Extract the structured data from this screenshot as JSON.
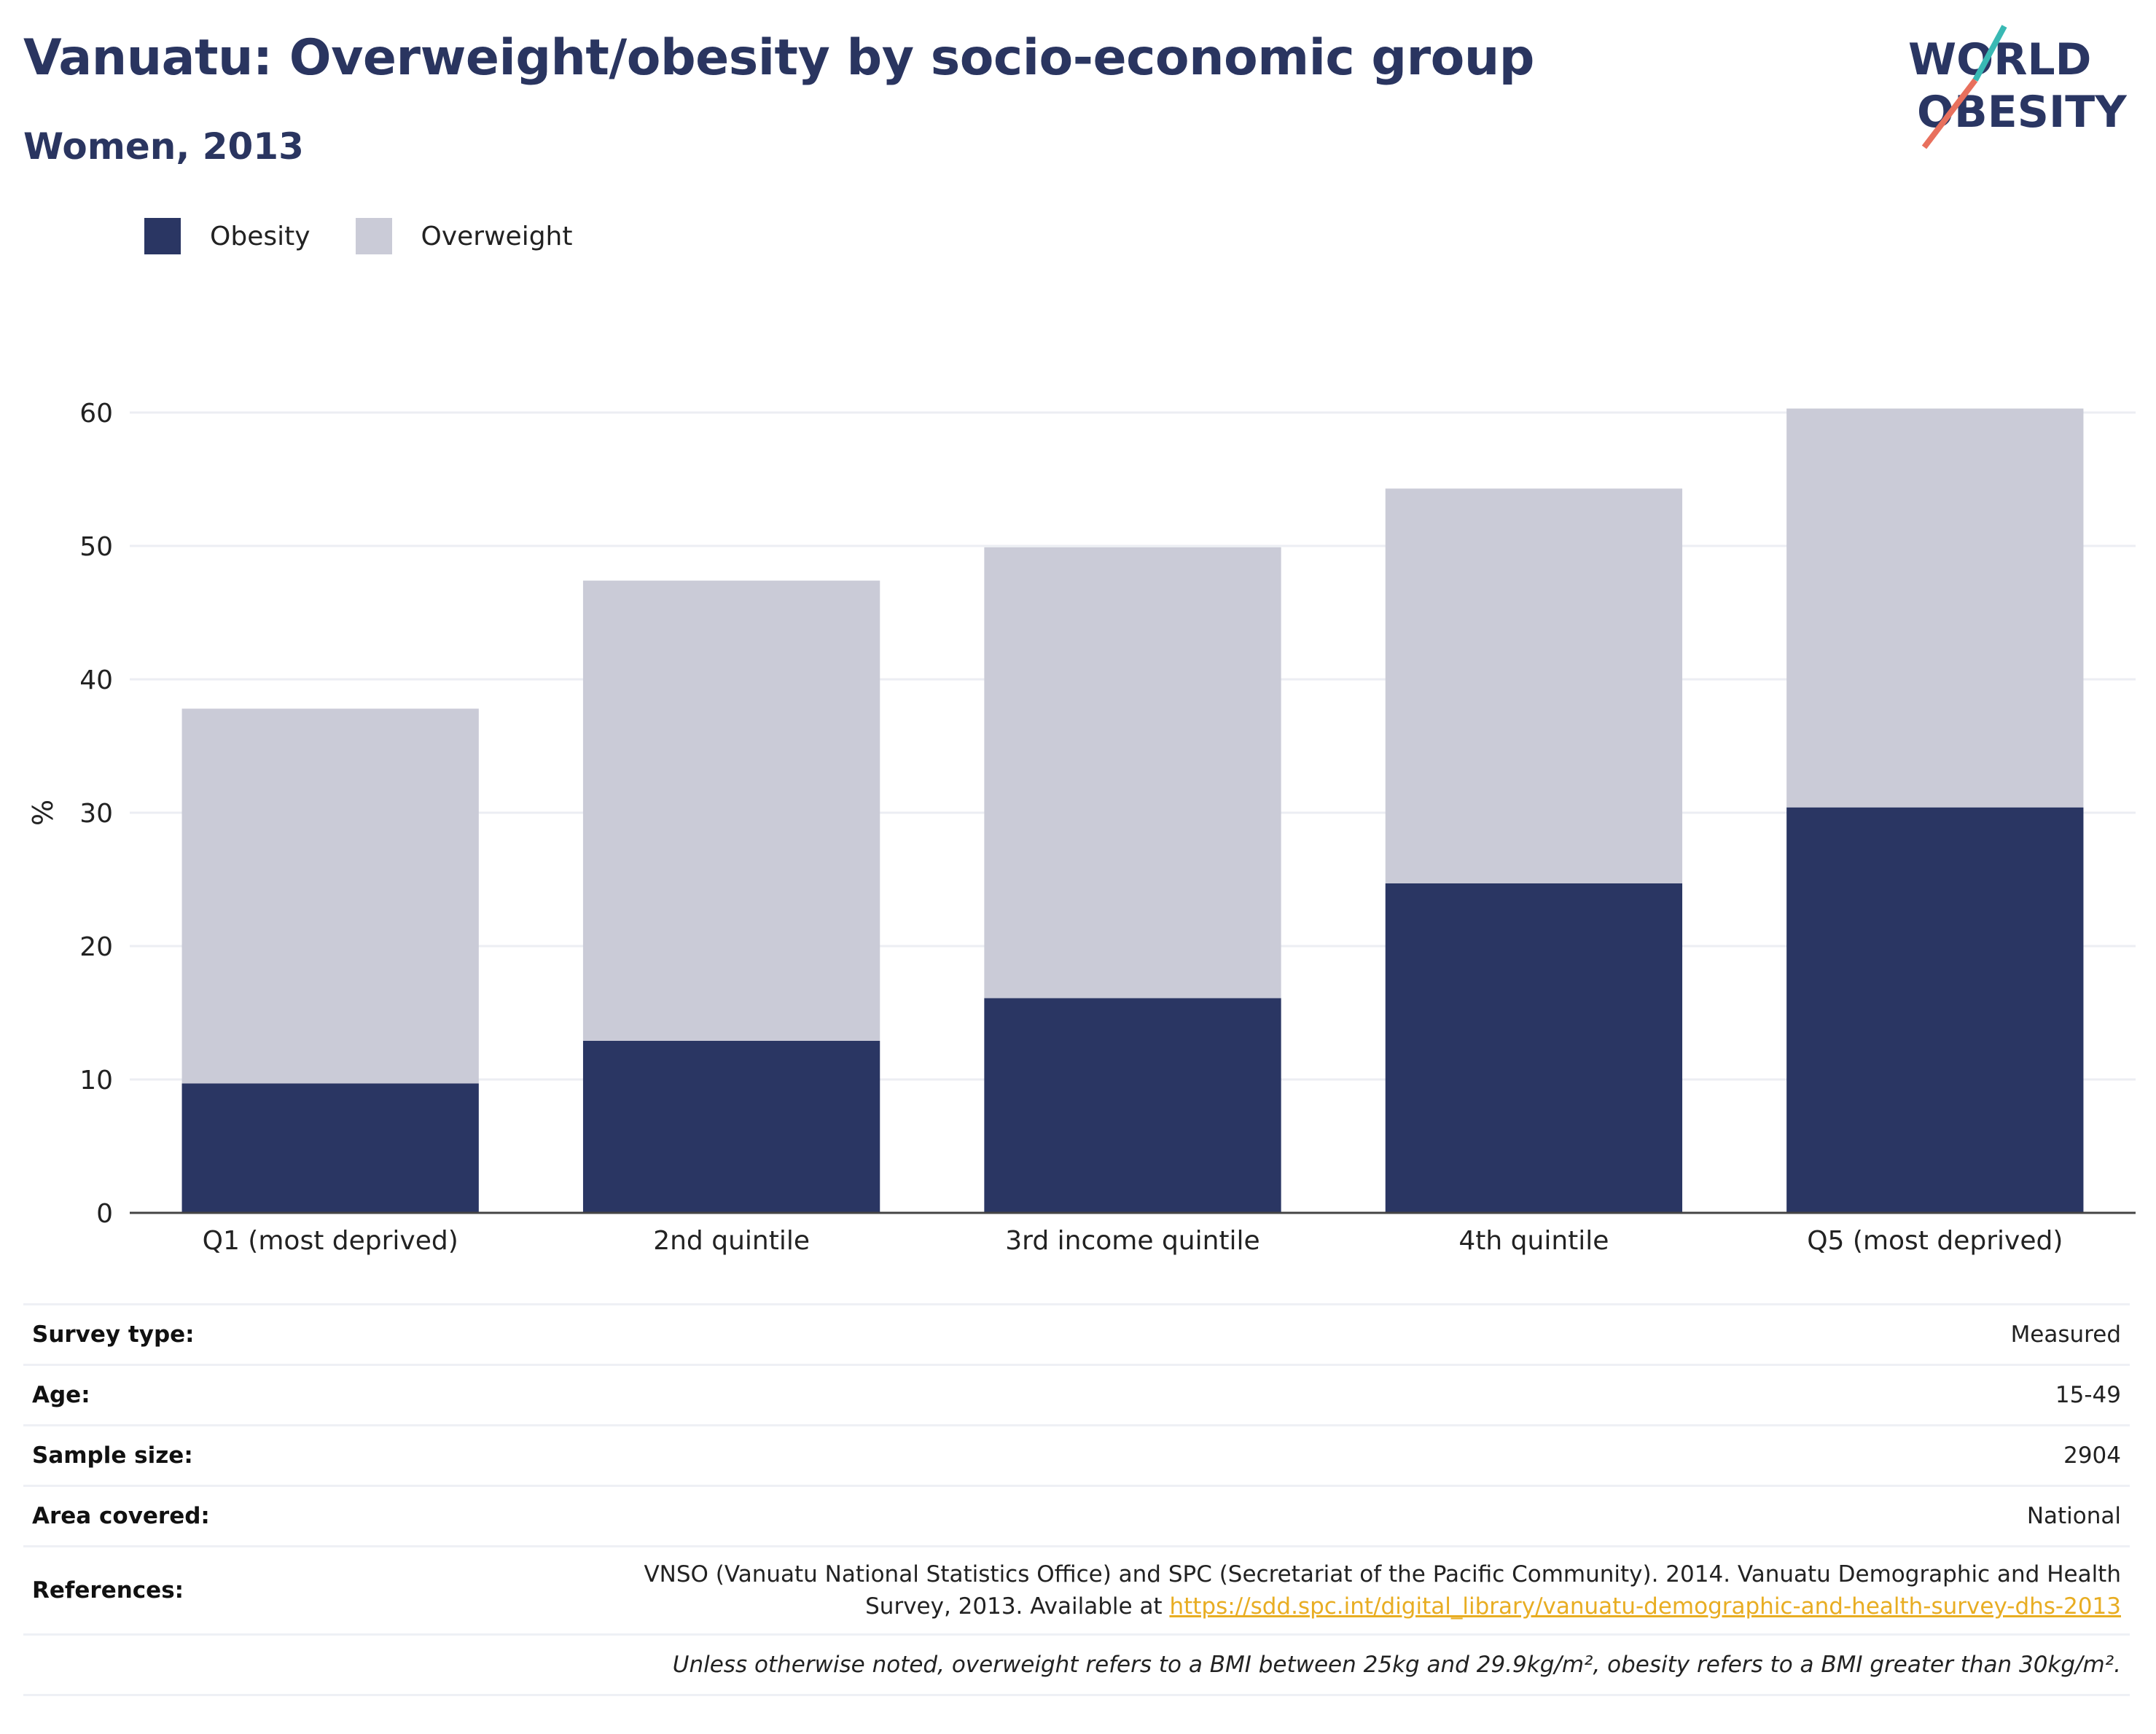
{
  "header": {
    "title": "Vanuatu: Overweight/obesity by socio-economic group",
    "subtitle": "Women, 2013"
  },
  "logo": {
    "line1": "WORLD",
    "line2": "OBESITY"
  },
  "legend": [
    {
      "label": "Obesity",
      "color": "#2a3663"
    },
    {
      "label": "Overweight",
      "color": "#cacbd7"
    }
  ],
  "chart_data": {
    "type": "bar",
    "stacked": true,
    "categories": [
      "Q1 (most deprived)",
      "2nd quintile",
      "3rd income quintile",
      "4th quintile",
      "Q5 (most deprived)"
    ],
    "series": [
      {
        "name": "Obesity",
        "color": "#2a3663",
        "values": [
          9.7,
          12.9,
          16.1,
          24.7,
          30.4
        ]
      },
      {
        "name": "Overweight",
        "color": "#cacbd7",
        "values": [
          28.1,
          34.5,
          33.8,
          29.6,
          29.9
        ]
      }
    ],
    "ylabel": "%",
    "ylim": [
      0,
      60
    ],
    "yticks": [
      0,
      10,
      20,
      30,
      40,
      50,
      60
    ],
    "grid": true,
    "legend_position": "top-left"
  },
  "info": {
    "rows": [
      {
        "key": "Survey type:",
        "value": "Measured"
      },
      {
        "key": "Age:",
        "value": "15-49"
      },
      {
        "key": "Sample size:",
        "value": "2904"
      },
      {
        "key": "Area covered:",
        "value": "National"
      }
    ],
    "references_key": "References:",
    "references_line1": "VNSO (Vanuatu National Statistics Office) and SPC (Secretariat of the Pacific Community). 2014. Vanuatu Demographic and Health",
    "references_line2": "Survey, 2013. Available at",
    "references_link": "https://sdd.spc.int/digital_library/vanuatu-demographic-and-health-survey-dhs-2013",
    "note": "Unless otherwise noted, overweight refers to a BMI between 25kg and 29.9kg/m², obesity refers to a BMI greater than 30kg/m²."
  }
}
